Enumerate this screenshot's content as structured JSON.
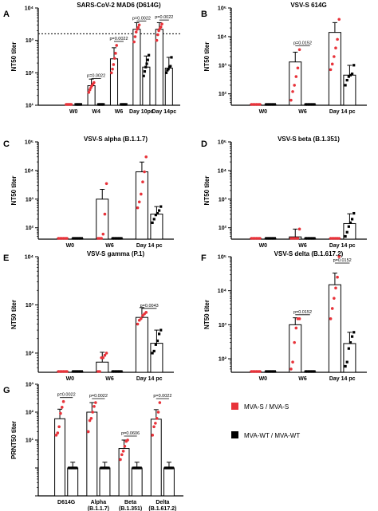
{
  "legend": {
    "items": [
      {
        "label": "MVA-S / MVA-S",
        "color": "#e8333a"
      },
      {
        "label": "MVA-WT / MVA-WT",
        "color": "#000000"
      }
    ]
  },
  "colors": {
    "mva_s": "#e8333a",
    "mva_wt": "#000000"
  },
  "chart_data": [
    {
      "letter": "A",
      "type": "bar",
      "title": "SARS-CoV-2 MAD6 (D614G)",
      "ylabel": "NT50 titer",
      "yscale": "log",
      "ylim": [
        10,
        10000
      ],
      "yticks": [
        "10¹",
        "10²",
        "10³",
        "10⁴"
      ],
      "categories": [
        "W0",
        "W4",
        "W6",
        "Day 10pc",
        "Day 14pc"
      ],
      "reference_line": 1600,
      "series": [
        {
          "name": "MVA-S / MVA-S",
          "values": [
            10,
            40,
            270,
            2200,
            2200
          ],
          "points": [
            [
              10,
              10,
              10,
              10,
              10,
              10
            ],
            [
              25,
              30,
              35,
              40,
              45,
              50
            ],
            [
              100,
              130,
              180,
              280,
              400,
              700
            ],
            [
              900,
              1300,
              1800,
              2200,
              2500,
              3000
            ],
            [
              1000,
              1500,
              2000,
              2300,
              2600,
              3200
            ]
          ]
        },
        {
          "name": "MVA-WT / MVA-WT",
          "values": [
            10,
            10,
            10,
            150,
            140
          ],
          "points": [
            [
              10,
              10,
              10,
              10,
              10,
              10
            ],
            [
              10,
              10,
              10,
              10,
              10,
              10
            ],
            [
              10,
              10,
              10,
              10,
              10,
              10
            ],
            [
              80,
              110,
              150,
              190,
              250,
              350
            ],
            [
              100,
              120,
              130,
              150,
              160,
              300
            ]
          ]
        }
      ],
      "pvalues": [
        {
          "group": 1,
          "label": "p=0.0022"
        },
        {
          "group": 2,
          "label": "p=0.0022"
        },
        {
          "group": 3,
          "label": "p=0.0022"
        },
        {
          "group": 4,
          "label": "p=0.0022"
        }
      ]
    },
    {
      "letter": "B",
      "type": "bar",
      "title": "VSV-S 614G",
      "ylabel": "NT50 titer",
      "yscale": "log",
      "ylim": [
        40,
        100000
      ],
      "yticks": [
        "10²",
        "10³",
        "10⁴",
        "10⁵"
      ],
      "categories": [
        "W0",
        "W6",
        "Day 14 pc"
      ],
      "series": [
        {
          "name": "MVA-S / MVA-S",
          "values": [
            40,
            1300,
            14000
          ],
          "points": [
            [
              40,
              40,
              40,
              40,
              40,
              40
            ],
            [
              60,
              120,
              200,
              400,
              800,
              3500
            ],
            [
              700,
              1100,
              2000,
              4000,
              8000,
              40000
            ]
          ]
        },
        {
          "name": "MVA-WT / MVA-WT",
          "values": [
            40,
            40,
            450
          ],
          "points": [
            [
              40,
              40,
              40,
              40,
              40,
              40
            ],
            [
              40,
              40,
              40,
              40,
              40,
              40
            ],
            [
              200,
              300,
              400,
              450,
              500,
              1000
            ]
          ]
        }
      ],
      "pvalues": [
        {
          "group": 1,
          "label": "p=0.0152"
        }
      ]
    },
    {
      "letter": "C",
      "type": "bar",
      "title": "VSV-S alpha (B.1.1.7)",
      "ylabel": "NT50 titer",
      "yscale": "log",
      "ylim": [
        40,
        100000
      ],
      "yticks": [
        "10²",
        "10³",
        "10⁴",
        "10⁵"
      ],
      "categories": [
        "W0",
        "W6",
        "Day 14 pc"
      ],
      "series": [
        {
          "name": "MVA-S / MVA-S",
          "values": [
            40,
            1000,
            9000
          ],
          "points": [
            [
              40,
              40,
              40,
              40,
              40,
              40
            ],
            [
              40,
              40,
              40,
              60,
              300,
              3500
            ],
            [
              500,
              800,
              1500,
              4000,
              9000,
              30000
            ]
          ]
        },
        {
          "name": "MVA-WT / MVA-WT",
          "values": [
            40,
            40,
            300
          ],
          "points": [
            [
              40,
              40,
              40,
              40,
              40,
              40
            ],
            [
              40,
              40,
              40,
              40,
              40,
              40
            ],
            [
              150,
              200,
              280,
              320,
              400,
              550
            ]
          ]
        }
      ]
    },
    {
      "letter": "D",
      "type": "bar",
      "title": "VSV-S beta (B.1.351)",
      "ylabel": "NT50 titer",
      "yscale": "log",
      "ylim": [
        40,
        100000
      ],
      "yticks": [
        "10²",
        "10³",
        "10⁴",
        "10⁵"
      ],
      "categories": [
        "W0",
        "W6",
        "Day 14 pc"
      ],
      "series": [
        {
          "name": "MVA-S / MVA-S",
          "values": [
            40,
            48,
            40
          ],
          "points": [
            [
              40,
              40,
              40,
              40,
              40,
              40
            ],
            [
              40,
              40,
              40,
              40,
              40,
              90
            ],
            [
              40,
              40,
              40,
              40,
              40,
              40
            ]
          ]
        },
        {
          "name": "MVA-WT / MVA-WT",
          "values": [
            40,
            40,
            140
          ],
          "points": [
            [
              40,
              40,
              40,
              40,
              40,
              40
            ],
            [
              40,
              40,
              40,
              40,
              40,
              40
            ],
            [
              50,
              70,
              110,
              150,
              200,
              320
            ]
          ]
        }
      ]
    },
    {
      "letter": "E",
      "type": "bar",
      "title": "VSV-S gamma (P.1)",
      "ylabel": "NT50 titer",
      "yscale": "log",
      "ylim": [
        40,
        10000
      ],
      "yticks": [
        "10²",
        "10³",
        "10⁴"
      ],
      "categories": [
        "W0",
        "W6",
        "Day 14 pc"
      ],
      "series": [
        {
          "name": "MVA-S / MVA-S",
          "values": [
            40,
            65,
            550
          ],
          "points": [
            [
              40,
              40,
              40,
              40,
              40,
              40
            ],
            [
              40,
              40,
              80,
              80,
              90,
              100
            ],
            [
              400,
              480,
              520,
              600,
              650,
              700
            ]
          ]
        },
        {
          "name": "MVA-WT / MVA-WT",
          "values": [
            40,
            40,
            160
          ],
          "points": [
            [
              40,
              40,
              40,
              40,
              40,
              40
            ],
            [
              40,
              40,
              40,
              40,
              40,
              40
            ],
            [
              100,
              110,
              150,
              180,
              250,
              300
            ]
          ]
        }
      ],
      "pvalues": [
        {
          "group": 2,
          "label": "p=0.0043"
        }
      ]
    },
    {
      "letter": "F",
      "type": "bar",
      "title": "VSV-S delta (B.1.617.2)",
      "ylabel": "NT50 titer",
      "yscale": "log",
      "ylim": [
        40,
        100000
      ],
      "yticks": [
        "10²",
        "10³",
        "10⁴",
        "10⁵"
      ],
      "categories": [
        "W0",
        "W6",
        "Day 14 pc"
      ],
      "series": [
        {
          "name": "MVA-S / MVA-S",
          "values": [
            40,
            1000,
            15000
          ],
          "points": [
            [
              40,
              40,
              40,
              40,
              40,
              40
            ],
            [
              50,
              80,
              300,
              800,
              1500,
              1500
            ],
            [
              1500,
              3000,
              6000,
              12000,
              25000,
              100000
            ]
          ]
        },
        {
          "name": "MVA-WT / MVA-WT",
          "values": [
            40,
            40,
            280
          ],
          "points": [
            [
              40,
              40,
              40,
              40,
              40,
              40
            ],
            [
              40,
              40,
              40,
              40,
              40,
              40
            ],
            [
              60,
              80,
              200,
              300,
              450,
              600
            ]
          ]
        }
      ],
      "pvalues": [
        {
          "group": 1,
          "label": "p=0.0152"
        },
        {
          "group": 2,
          "label": "p=0.0152"
        }
      ]
    },
    {
      "letter": "G",
      "type": "bar",
      "title": "",
      "ylabel": "PRNT50 titer",
      "yscale": "log",
      "ylim": [
        1,
        10000
      ],
      "yticks": [
        "10¹",
        "10²",
        "10³"
      ],
      "categories": [
        "D614G",
        "Alpha\n(B.1.1.7)",
        "Beta\n(B.1.351)",
        "Delta\n(B.1.617.2)"
      ],
      "series": [
        {
          "name": "MVA-S / MVA-S",
          "values": [
            580,
            1000,
            50,
            560
          ],
          "points": [
            [
              150,
              180,
              300,
              900,
              1500,
              2400
            ],
            [
              200,
              500,
              600,
              1000,
              1600,
              2200
            ],
            [
              20,
              30,
              40,
              60,
              90,
              100
            ],
            [
              150,
              300,
              400,
              600,
              1000,
              2200
            ]
          ]
        },
        {
          "name": "MVA-WT / MVA-WT",
          "values": [
            10,
            10,
            10,
            10
          ],
          "points": [
            [
              10,
              10,
              10,
              10,
              10,
              10
            ],
            [
              10,
              10,
              10,
              10,
              10,
              10
            ],
            [
              10,
              10,
              10,
              10,
              10,
              10
            ],
            [
              10,
              10,
              10,
              10,
              10,
              10
            ]
          ]
        }
      ],
      "pvalues": [
        {
          "group": 0,
          "label": "p=0.0022"
        },
        {
          "group": 1,
          "label": "p=0.0022"
        },
        {
          "group": 2,
          "label": "p=0.0606"
        },
        {
          "group": 3,
          "label": "p=0.0022"
        }
      ]
    }
  ]
}
